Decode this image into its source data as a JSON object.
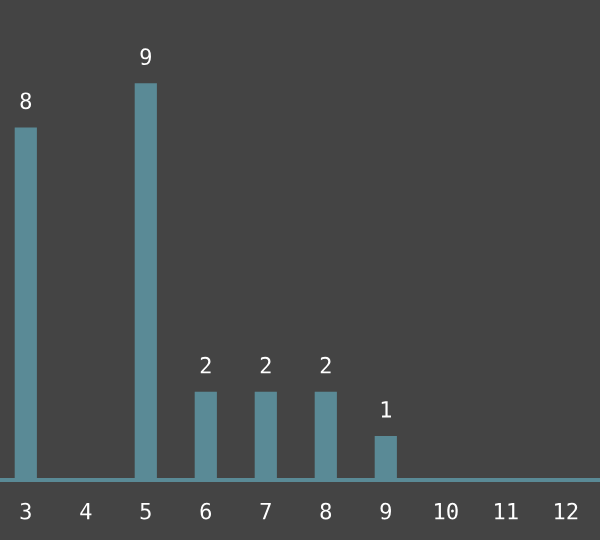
{
  "chart_data": {
    "type": "bar",
    "categories": [
      "3",
      "4",
      "5",
      "6",
      "7",
      "8",
      "9",
      "10",
      "11",
      "12"
    ],
    "values": [
      8,
      null,
      9,
      2,
      2,
      2,
      1,
      null,
      null,
      null
    ],
    "color": "#5a8a96",
    "data_labels": true,
    "grid": false,
    "legend": false
  }
}
